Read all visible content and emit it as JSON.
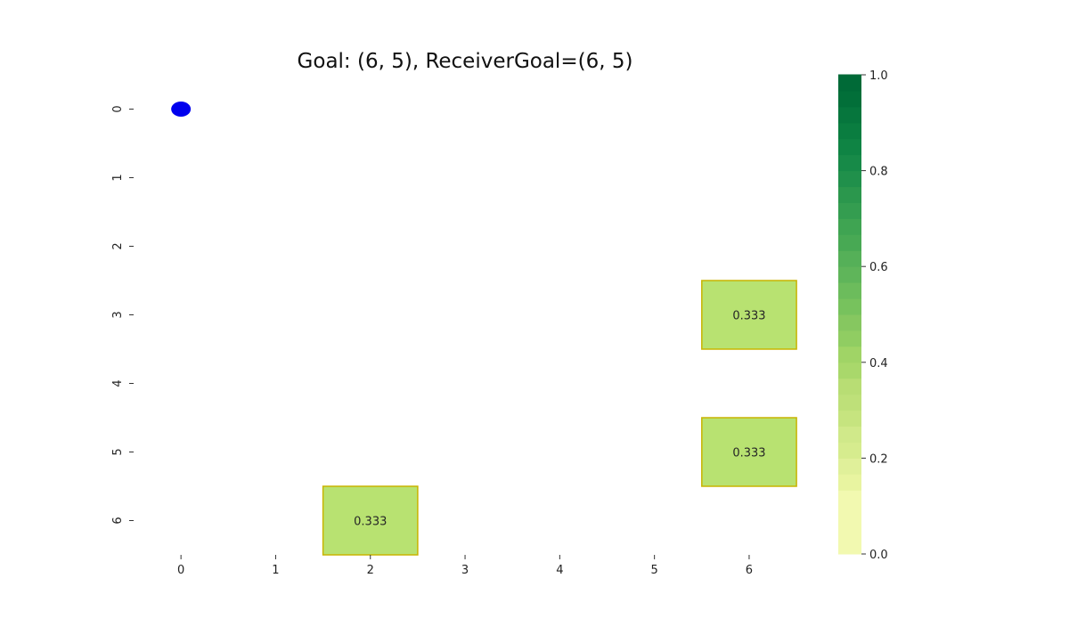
{
  "chart_data": {
    "type": "heatmap",
    "title": "Goal: (6, 5), ReceiverGoal=(6, 5)",
    "x_ticks": [
      "0",
      "1",
      "2",
      "3",
      "4",
      "5",
      "6"
    ],
    "y_ticks": [
      "0",
      "1",
      "2",
      "3",
      "4",
      "5",
      "6"
    ],
    "cells": [
      {
        "row": 3,
        "col": 6,
        "value": 0.333,
        "label": "0.333"
      },
      {
        "row": 5,
        "col": 6,
        "value": 0.333,
        "label": "0.333"
      },
      {
        "row": 6,
        "col": 2,
        "value": 0.333,
        "label": "0.333"
      }
    ],
    "marker": {
      "row": 0,
      "col": 0,
      "color": "#0000ee"
    },
    "cell_color": "#b8e271",
    "cell_edge_color": "#c8b400",
    "colorbar": {
      "range": [
        0,
        1
      ],
      "ticks": [
        "0.0",
        "0.2",
        "0.4",
        "0.6",
        "0.8",
        "1.0"
      ],
      "colors": [
        "#f2f9b0",
        "#f2f9b0",
        "#f2f9b0",
        "#f2f9b0",
        "#e8f4a0",
        "#e0f09a",
        "#d6ec8e",
        "#d0e98a",
        "#c6e47f",
        "#bee079",
        "#b8dd74",
        "#a9d86b",
        "#a0d466",
        "#90cd62",
        "#86c760",
        "#77c25d",
        "#6cbc5c",
        "#5fb55a",
        "#55b058",
        "#48a954",
        "#3fa452",
        "#349d50",
        "#2b974d",
        "#20904b",
        "#178a48",
        "#0f8444",
        "#0a7d40",
        "#06763d",
        "#026f39",
        "#006a37"
      ],
      "grid": false
    },
    "grid": false
  }
}
